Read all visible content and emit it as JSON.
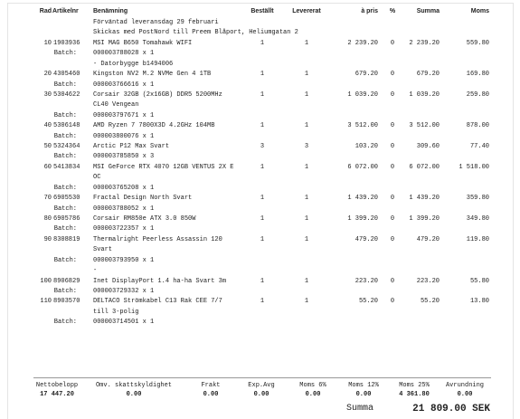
{
  "header": {
    "rad": "Rad",
    "artikelnr": "Artikelnr",
    "benamning": "Benämning",
    "bestallt": "Beställt",
    "levererat": "Levererat",
    "apris": "à pris",
    "pct": "%",
    "summa": "Summa",
    "moms": "Moms"
  },
  "notes": [
    "Förväntad leveransdag 29 februari",
    "Skickas med PostNord till Preem Blåport, Heliumgatan 2"
  ],
  "batch_label": "Batch:",
  "items": [
    {
      "rad": "10",
      "artikelnr": "1903936",
      "benamning": [
        "MSI MAG B650 Tomahawk WIFI"
      ],
      "bestallt": "1",
      "levererat": "1",
      "apris": "2 239.20",
      "pct": "0",
      "summa": "2 239.20",
      "moms": "559.80",
      "batch": "000003788028 x 1",
      "extra": [
        "- Datorbygge b1494006"
      ]
    },
    {
      "rad": "20",
      "artikelnr": "4305460",
      "benamning": [
        "Kingston NV2 M.2 NVMe Gen 4 1TB"
      ],
      "bestallt": "1",
      "levererat": "1",
      "apris": "679.20",
      "pct": "0",
      "summa": "679.20",
      "moms": "169.80",
      "batch": "000003766616 x 1",
      "extra": []
    },
    {
      "rad": "30",
      "artikelnr": "5304622",
      "benamning": [
        "Corsair 32GB (2x16GB) DDR5 5200MHz",
        "CL40 Vengean"
      ],
      "bestallt": "1",
      "levererat": "1",
      "apris": "1 039.20",
      "pct": "0",
      "summa": "1 039.20",
      "moms": "259.80",
      "batch": "000003797671 x 1",
      "extra": []
    },
    {
      "rad": "40",
      "artikelnr": "5306148",
      "benamning": [
        "AMD Ryzen 7 7800X3D 4.2GHz 104MB"
      ],
      "bestallt": "1",
      "levererat": "1",
      "apris": "3 512.00",
      "pct": "0",
      "summa": "3 512.00",
      "moms": "878.00",
      "batch": "000003800076 x 1",
      "extra": []
    },
    {
      "rad": "50",
      "artikelnr": "5324364",
      "benamning": [
        "Arctic P12 Max Svart"
      ],
      "bestallt": "3",
      "levererat": "3",
      "apris": "103.20",
      "pct": "0",
      "summa": "309.60",
      "moms": "77.40",
      "batch": "000003785850 x 3",
      "extra": []
    },
    {
      "rad": "60",
      "artikelnr": "5413834",
      "benamning": [
        "MSI GeForce RTX 4070 12GB VENTUS 2X E",
        "OC"
      ],
      "bestallt": "1",
      "levererat": "1",
      "apris": "6 072.00",
      "pct": "0",
      "summa": "6 072.00",
      "moms": "1 518.00",
      "batch": "000003765208 x 1",
      "extra": []
    },
    {
      "rad": "70",
      "artikelnr": "6905530",
      "benamning": [
        "Fractal Design North Svart"
      ],
      "bestallt": "1",
      "levererat": "1",
      "apris": "1 439.20",
      "pct": "0",
      "summa": "1 439.20",
      "moms": "359.80",
      "batch": "000003788052 x 1",
      "extra": []
    },
    {
      "rad": "80",
      "artikelnr": "6905786",
      "benamning": [
        "Corsair RM850e ATX 3.0 850W"
      ],
      "bestallt": "1",
      "levererat": "1",
      "apris": "1 399.20",
      "pct": "0",
      "summa": "1 399.20",
      "moms": "349.80",
      "batch": "000003722357 x 1",
      "extra": []
    },
    {
      "rad": "90",
      "artikelnr": "8308819",
      "benamning": [
        "Thermalright Peerless Assassin 120",
        "Svart"
      ],
      "bestallt": "1",
      "levererat": "1",
      "apris": "479.20",
      "pct": "0",
      "summa": "479.20",
      "moms": "119.80",
      "batch": "000003793950 x 1",
      "extra": [
        "-"
      ]
    },
    {
      "rad": "100",
      "artikelnr": "8906829",
      "benamning": [
        "Inet DisplayPort 1.4 ha-ha Svart 3m"
      ],
      "bestallt": "1",
      "levererat": "1",
      "apris": "223.20",
      "pct": "0",
      "summa": "223.20",
      "moms": "55.80",
      "batch": "000003729332 x 1",
      "extra": []
    },
    {
      "rad": "110",
      "artikelnr": "8903570",
      "benamning": [
        "DELTACO Strömkabel C13 Rak CEE 7/7",
        "till 3-polig"
      ],
      "bestallt": "1",
      "levererat": "1",
      "apris": "55.20",
      "pct": "0",
      "summa": "55.20",
      "moms": "13.80",
      "batch": "000003714501 x 1",
      "extra": []
    }
  ],
  "footer": {
    "columns": [
      {
        "label": "Nettobelopp",
        "value": "17 447.20"
      },
      {
        "label": "Omv. skattskyldighet",
        "value": "0.00"
      },
      {
        "label": "Frakt",
        "value": "0.00"
      },
      {
        "label": "Exp.Avg",
        "value": "0.00"
      },
      {
        "label": "Moms 6%",
        "value": "0.00"
      },
      {
        "label": "Moms 12%",
        "value": "0.00"
      },
      {
        "label": "Moms 25%",
        "value": "4 361.80"
      },
      {
        "label": "Avrundning",
        "value": "0.00"
      }
    ],
    "total_label": "Summa",
    "total": "21 809.00 SEK"
  }
}
